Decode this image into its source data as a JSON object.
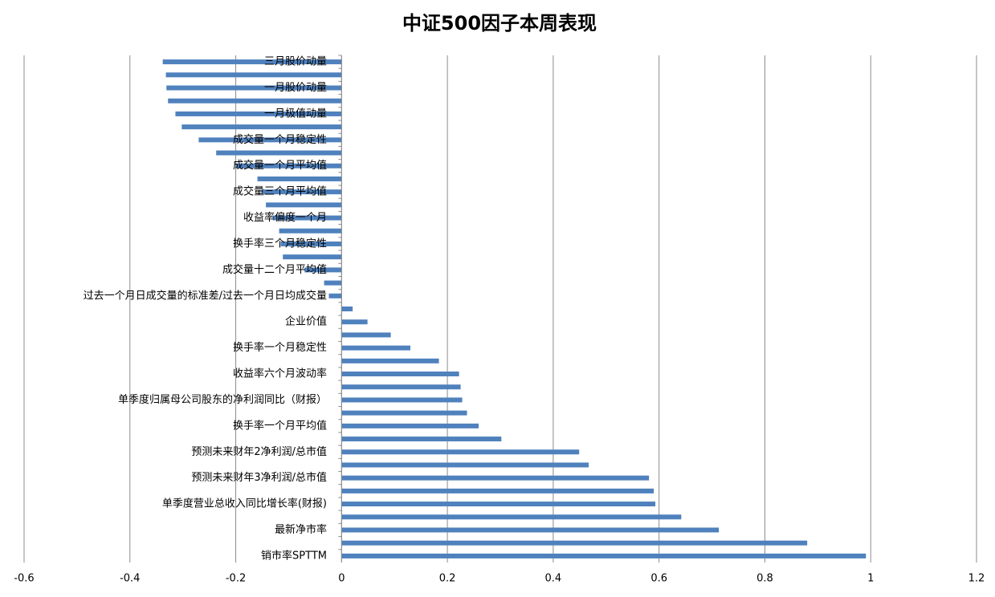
{
  "chart_data": {
    "type": "barh",
    "title": "中证500因子本周表现",
    "categories": [
      "三月股价动量",
      null,
      "一月股价动量",
      null,
      "一月极值动量",
      null,
      "成交量一个月稳定性",
      null,
      "成交量一个月平均值",
      null,
      "成交量三个月平均值",
      null,
      "收益率偏度一个月",
      null,
      "换手率三个月稳定性",
      null,
      "成交量十二个月平均值",
      null,
      "过去一个月日成交量的标准差/过去一个月日均成交量",
      null,
      "企业价值",
      null,
      "换手率一个月稳定性",
      null,
      "收益率六个月波动率",
      null,
      "单季度归属母公司股东的净利润同比（财报）",
      null,
      "换手率一个月平均值",
      null,
      "预测未来财年2净利润/总市值",
      null,
      "预测未来财年3净利润/总市值",
      null,
      "单季度营业总收入同比增长率(财报)",
      null,
      "最新净市率",
      null,
      "销市率SPTTM"
    ],
    "values": [
      -0.338,
      -0.332,
      -0.331,
      -0.328,
      -0.314,
      -0.302,
      -0.27,
      -0.237,
      -0.2,
      -0.159,
      -0.15,
      -0.143,
      -0.13,
      -0.118,
      -0.115,
      -0.111,
      -0.07,
      -0.033,
      -0.024,
      0.021,
      0.049,
      0.093,
      0.13,
      0.184,
      0.222,
      0.225,
      0.228,
      0.237,
      0.259,
      0.302,
      0.449,
      0.467,
      0.581,
      0.59,
      0.593,
      0.642,
      0.713,
      0.88,
      0.991
    ],
    "color": "#4f81bd",
    "xlim": [
      -0.6,
      1.2
    ],
    "xticks": [
      -0.6,
      -0.4,
      -0.2,
      0,
      0.2,
      0.4,
      0.6,
      0.8,
      1,
      1.2
    ],
    "grid": true
  }
}
